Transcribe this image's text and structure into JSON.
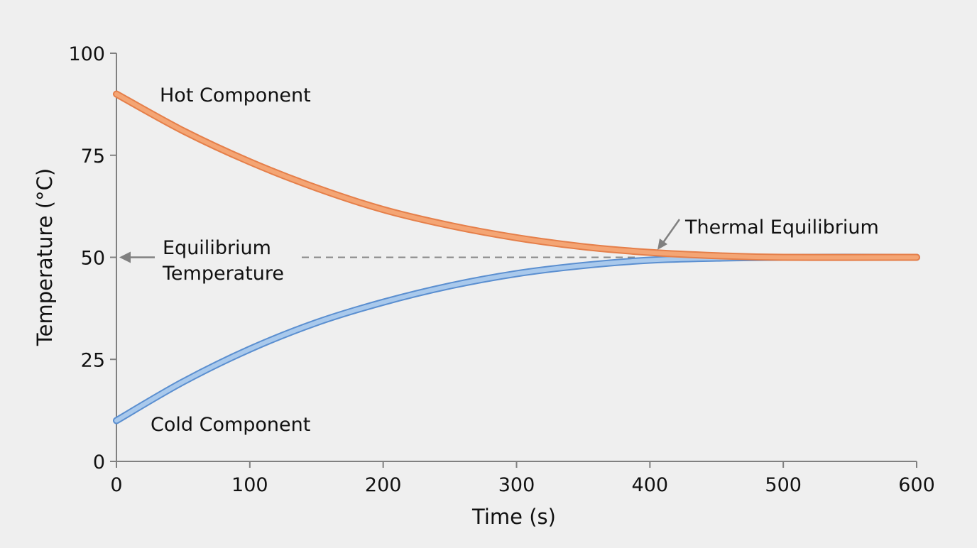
{
  "chart_data": {
    "type": "line",
    "title": "",
    "xlabel": "Time (s)",
    "ylabel": "Temperature (°C)",
    "xlim": [
      0,
      600
    ],
    "ylim": [
      0,
      100
    ],
    "xticks": [
      0,
      100,
      200,
      300,
      400,
      500,
      600
    ],
    "yticks": [
      0,
      25,
      50,
      75,
      100
    ],
    "grid": false,
    "series": [
      {
        "name": "Hot Component",
        "color": "#f4a574",
        "edge": "#e57f4a",
        "x": [
          0,
          50,
          100,
          150,
          200,
          250,
          300,
          350,
          400,
          450,
          500,
          600
        ],
        "y": [
          90,
          81,
          73.4,
          67,
          61.7,
          57.8,
          54.8,
          52.6,
          51.2,
          50.4,
          50,
          50
        ]
      },
      {
        "name": "Cold Component",
        "color": "#a9c9ec",
        "edge": "#5b8fd0",
        "x": [
          0,
          50,
          100,
          150,
          200,
          250,
          300,
          350,
          400,
          450,
          500,
          600
        ],
        "y": [
          10,
          19.5,
          27.5,
          34,
          39,
          43,
          46,
          48,
          49.3,
          49.8,
          50,
          50
        ]
      }
    ],
    "annotations": {
      "equilibrium_value": 50,
      "equilibrium_label_1": "Equilibrium",
      "equilibrium_label_2": "Temperature",
      "thermal_equilibrium": "Thermal Equilibrium",
      "thermal_equilibrium_time": 405
    }
  }
}
